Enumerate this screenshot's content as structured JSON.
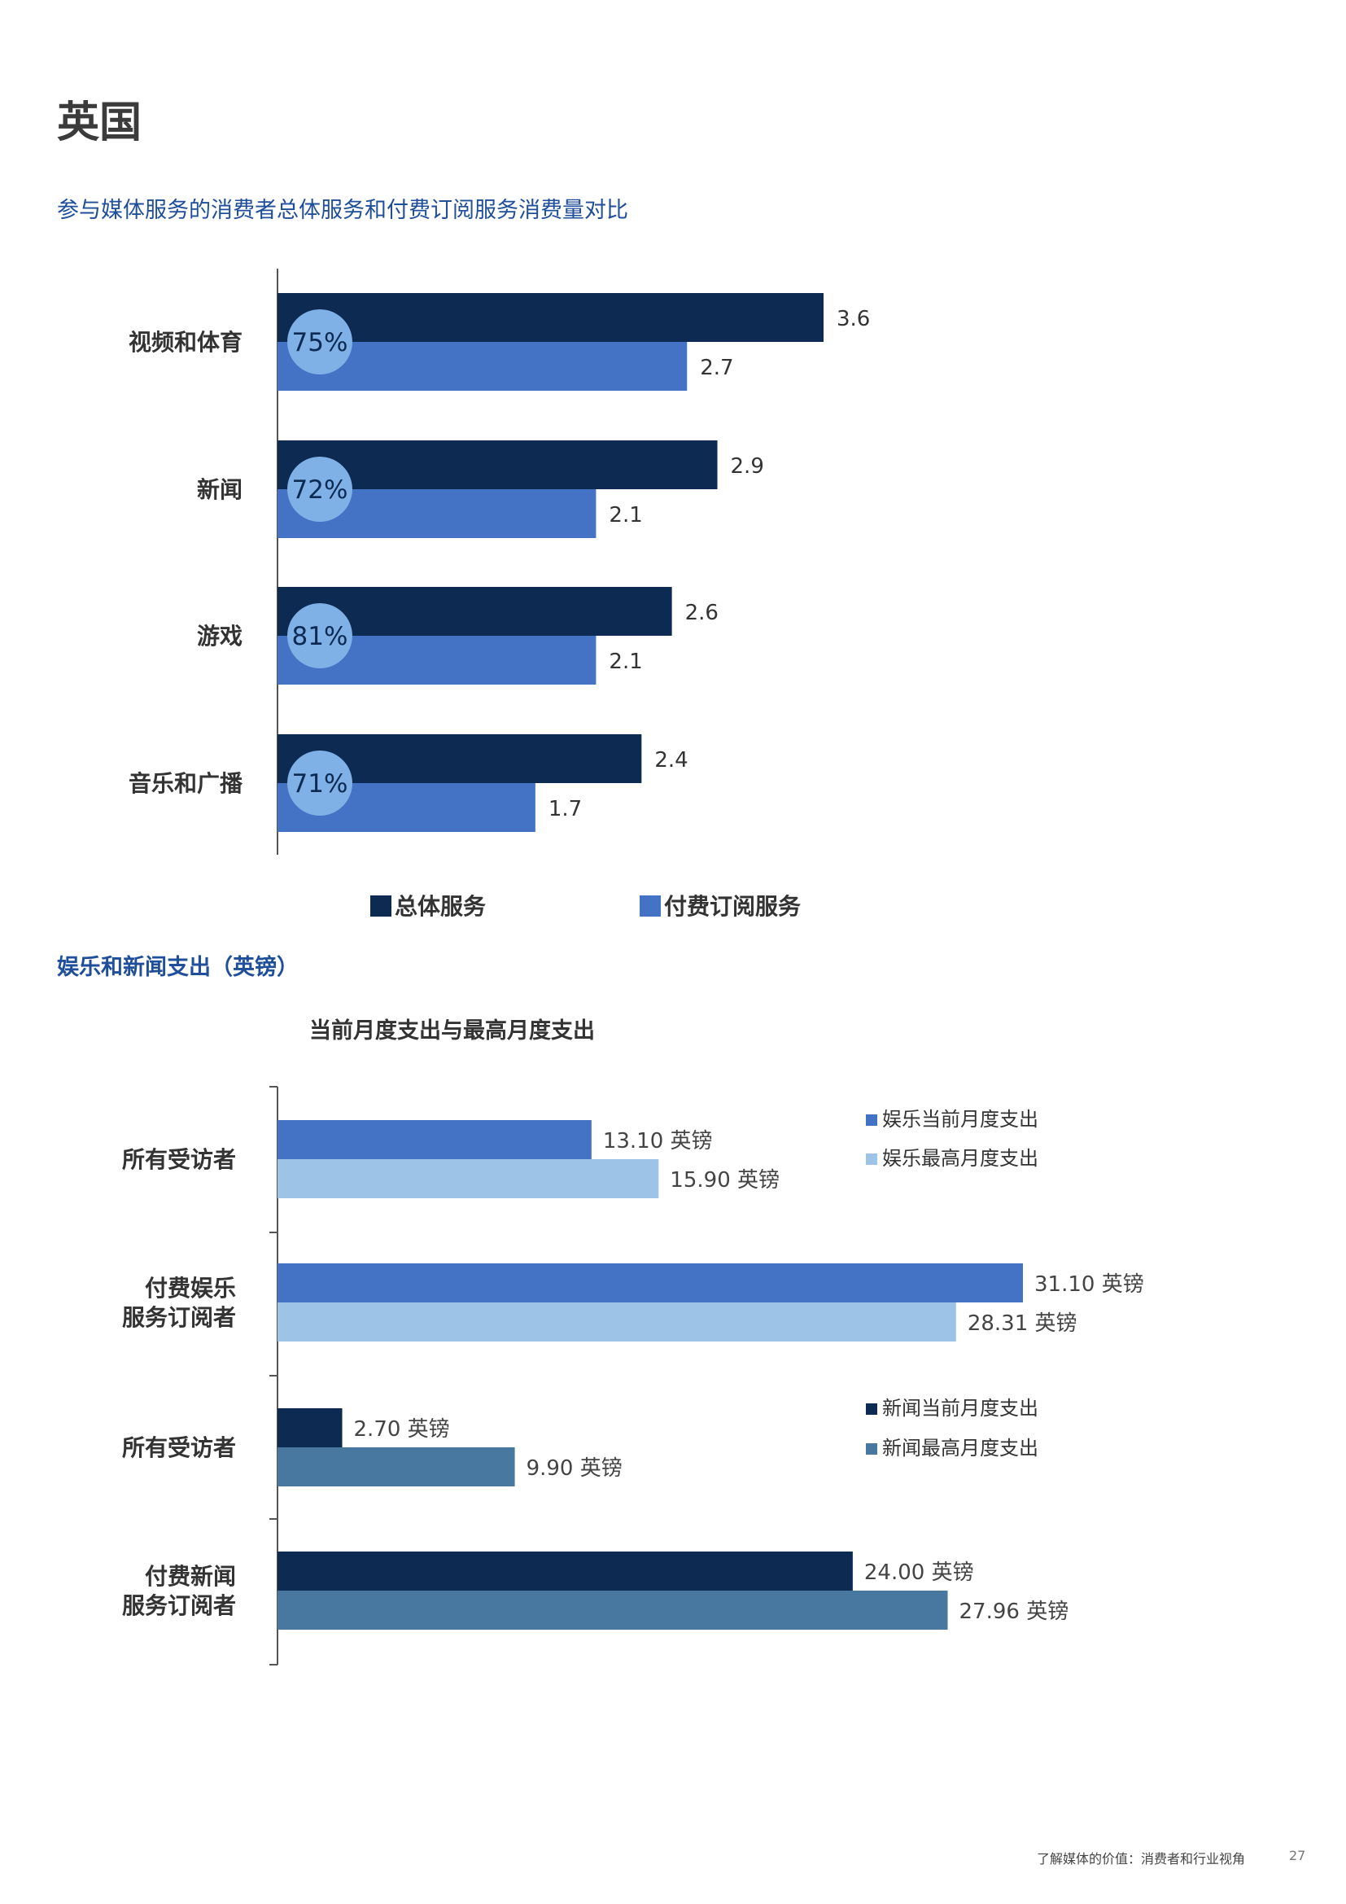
{
  "page": {
    "title": "英国",
    "subtitle1": "参与媒体服务的消费者总体服务和付费订阅服务消费量对比",
    "subtitle2": "娱乐和新闻支出（英镑）",
    "footer": "了解媒体的价值：消费者和行业视角",
    "page_number": "27"
  },
  "colors": {
    "dark_navy": "#0c2a52",
    "mid_blue": "#4472c4",
    "light_blue": "#9dc3e6",
    "steel_blue": "#4878a0",
    "circle": "#7fb0e6",
    "axis": "#555555"
  },
  "chart_data": [
    {
      "type": "bar",
      "orientation": "horizontal",
      "title": "",
      "categories": [
        "视频和体育",
        "新闻",
        "游戏",
        "音乐和广播"
      ],
      "series": [
        {
          "name": "总体服务",
          "values": [
            3.6,
            2.9,
            2.6,
            2.4
          ],
          "labels": [
            "3.6",
            "2.9",
            "2.6",
            "2.4"
          ],
          "color": "#0c2a52"
        },
        {
          "name": "付费订阅服务",
          "values": [
            2.7,
            2.1,
            2.1,
            1.7
          ],
          "labels": [
            "2.7",
            "2.1",
            "2.1",
            "1.7"
          ],
          "color": "#4472c4"
        }
      ],
      "badges": [
        "75%",
        "72%",
        "81%",
        "71%"
      ],
      "xlim": [
        0,
        3.6
      ],
      "grid": false,
      "legend_position": "bottom"
    },
    {
      "type": "bar",
      "orientation": "horizontal",
      "title": "当前月度支出与最高月度支出",
      "groups": [
        {
          "label": [
            "所有受访者"
          ],
          "bars": [
            {
              "value": 13.1,
              "label": "13.10 英镑",
              "series": "娱乐当前月度支出",
              "color": "#4472c4"
            },
            {
              "value": 15.9,
              "label": "15.90 英镑",
              "series": "娱乐最高月度支出",
              "color": "#9dc3e6"
            }
          ]
        },
        {
          "label": [
            "付费娱乐",
            "服务订阅者"
          ],
          "bars": [
            {
              "value": 31.1,
              "label": "31.10 英镑",
              "series": "娱乐当前月度支出",
              "color": "#4472c4"
            },
            {
              "value": 28.31,
              "label": "28.31 英镑",
              "series": "娱乐最高月度支出",
              "color": "#9dc3e6"
            }
          ]
        },
        {
          "label": [
            "所有受访者"
          ],
          "bars": [
            {
              "value": 2.7,
              "label": "2.70 英镑",
              "series": "新闻当前月度支出",
              "color": "#0c2a52"
            },
            {
              "value": 9.9,
              "label": "9.90 英镑",
              "series": "新闻最高月度支出",
              "color": "#4878a0"
            }
          ]
        },
        {
          "label": [
            "付费新闻",
            "服务订阅者"
          ],
          "bars": [
            {
              "value": 24.0,
              "label": "24.00 英镑",
              "series": "新闻当前月度支出",
              "color": "#0c2a52"
            },
            {
              "value": 27.96,
              "label": "27.96 英镑",
              "series": "新闻最高月度支出",
              "color": "#4878a0"
            }
          ]
        }
      ],
      "legend": [
        {
          "name": "娱乐当前月度支出",
          "color": "#4472c4"
        },
        {
          "name": "娱乐最高月度支出",
          "color": "#9dc3e6"
        },
        {
          "name": "新闻当前月度支出",
          "color": "#0c2a52"
        },
        {
          "name": "新闻最高月度支出",
          "color": "#4878a0"
        }
      ],
      "xlim": [
        0,
        31.1
      ],
      "grid": false
    }
  ]
}
